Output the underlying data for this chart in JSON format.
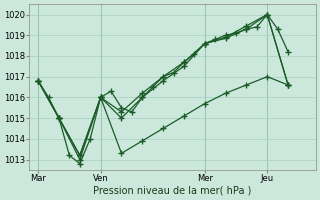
{
  "background_color": "#cce8dc",
  "grid_color": "#a8cfc0",
  "line_color": "#1a5c28",
  "xlabel": "Pression niveau de la mer( hPa )",
  "ylim": [
    1012.5,
    1020.5
  ],
  "yticks": [
    1013,
    1014,
    1015,
    1016,
    1017,
    1018,
    1019,
    1020
  ],
  "xtick_labels": [
    "Mar",
    "Ven",
    "Mer",
    "Jeu"
  ],
  "xtick_positions": [
    0,
    36,
    96,
    132
  ],
  "xlim": [
    -5,
    160
  ],
  "vline_positions": [
    0,
    36,
    96,
    132
  ],
  "series1_x": [
    0,
    6,
    12,
    18,
    24,
    30,
    36,
    42,
    48,
    54,
    60,
    66,
    72,
    78,
    84,
    90,
    96,
    102,
    108,
    114,
    120,
    126,
    132,
    138,
    144
  ],
  "series1_y": [
    1016.8,
    1016.0,
    1015.0,
    1013.2,
    1012.8,
    1014.0,
    1016.0,
    1016.3,
    1015.5,
    1015.3,
    1016.0,
    1016.5,
    1017.0,
    1017.2,
    1017.7,
    1018.1,
    1018.6,
    1018.8,
    1019.0,
    1019.1,
    1019.3,
    1019.4,
    1020.0,
    1019.3,
    1018.2
  ],
  "series2_x": [
    0,
    12,
    24,
    36,
    48,
    60,
    72,
    84,
    96,
    108,
    120,
    132,
    144
  ],
  "series2_y": [
    1016.8,
    1015.0,
    1013.2,
    1016.0,
    1015.3,
    1016.2,
    1017.0,
    1017.7,
    1018.6,
    1018.85,
    1019.3,
    1020.0,
    1016.6
  ],
  "series3_x": [
    0,
    12,
    24,
    36,
    48,
    60,
    72,
    84,
    96,
    108,
    120,
    132,
    144
  ],
  "series3_y": [
    1016.8,
    1015.0,
    1013.0,
    1016.0,
    1015.0,
    1016.0,
    1016.8,
    1017.5,
    1018.6,
    1018.9,
    1019.45,
    1020.0,
    1016.6
  ],
  "lower_line_x": [
    0,
    12,
    24,
    36,
    48,
    60,
    72,
    84,
    96,
    108,
    120,
    132,
    144
  ],
  "lower_line_y": [
    1016.8,
    1015.0,
    1013.2,
    1016.0,
    1013.3,
    1013.9,
    1014.5,
    1015.1,
    1015.7,
    1016.2,
    1016.6,
    1017.0,
    1016.6
  ],
  "marker": "+",
  "markersize": 4,
  "linewidth": 0.9
}
